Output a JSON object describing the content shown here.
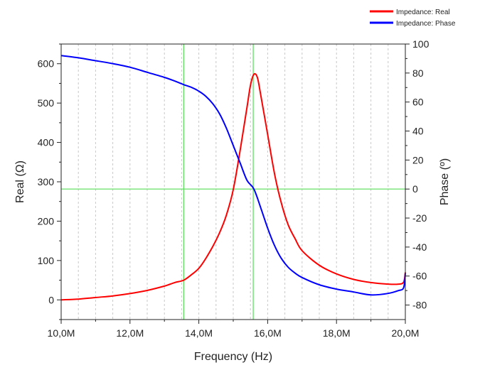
{
  "chart_data": {
    "type": "line",
    "xlabel": "Frequency (Hz)",
    "ylabel_left": "Real (Ω)",
    "ylabel_right": "Phase (º)",
    "xlim": [
      10.0,
      20.0
    ],
    "ylim_left": [
      -50,
      650
    ],
    "ylim_right": [
      -90,
      100
    ],
    "x_ticks": [
      10,
      12,
      14,
      16,
      18,
      20
    ],
    "x_tick_labels": [
      "10,0M",
      "12,0M",
      "14,0M",
      "16,0M",
      "18,0M",
      "20,0M"
    ],
    "y_left_ticks": [
      0,
      100,
      200,
      300,
      400,
      500,
      600
    ],
    "y_left_tick_labels": [
      "0",
      "100",
      "200",
      "300",
      "400",
      "500",
      "600"
    ],
    "y_right_ticks": [
      -80,
      -60,
      -40,
      -20,
      0,
      20,
      40,
      60,
      80,
      100
    ],
    "y_right_tick_labels": [
      "-80",
      "-60",
      "-40",
      "-20",
      "0",
      "20",
      "40",
      "60",
      "80",
      "100"
    ],
    "grid": true,
    "legend_position": "top-right",
    "markers": {
      "vertical_lines_x": [
        13.56,
        15.58
      ],
      "horizontal_line_phase": 0,
      "color": "#55dd55"
    },
    "series": [
      {
        "name": "Impedance: Real",
        "axis": "left",
        "color": "#ff0000",
        "x": [
          10.0,
          10.5,
          11.0,
          11.5,
          12.0,
          12.5,
          13.0,
          13.3,
          13.56,
          13.8,
          14.0,
          14.2,
          14.4,
          14.6,
          14.8,
          15.0,
          15.2,
          15.4,
          15.5,
          15.6,
          15.7,
          15.8,
          16.0,
          16.2,
          16.4,
          16.6,
          16.8,
          17.0,
          17.5,
          18.0,
          18.5,
          19.0,
          19.5,
          19.8,
          19.95,
          20.0
        ],
        "values": [
          0,
          2,
          6,
          10,
          16,
          24,
          35,
          44,
          50,
          65,
          80,
          105,
          135,
          170,
          215,
          280,
          380,
          490,
          545,
          573,
          565,
          520,
          420,
          320,
          245,
          190,
          155,
          125,
          88,
          66,
          52,
          44,
          40,
          40,
          45,
          70
        ]
      },
      {
        "name": "Impedance: Phase",
        "axis": "right",
        "color": "#0000ff",
        "x": [
          10.0,
          10.5,
          11.0,
          11.5,
          12.0,
          12.5,
          13.0,
          13.3,
          13.56,
          13.8,
          14.0,
          14.2,
          14.4,
          14.6,
          14.8,
          15.0,
          15.2,
          15.4,
          15.6,
          15.8,
          16.0,
          16.2,
          16.4,
          16.6,
          16.8,
          17.0,
          17.5,
          18.0,
          18.5,
          19.0,
          19.5,
          19.8,
          19.95,
          20.0
        ],
        "values": [
          92,
          90.5,
          88.5,
          86.5,
          84,
          80.5,
          77,
          74.5,
          72,
          70,
          67.5,
          64,
          59,
          52,
          42,
          30,
          18,
          6,
          0,
          -13,
          -27,
          -39,
          -48,
          -54,
          -58,
          -61,
          -66,
          -69,
          -71,
          -73,
          -72,
          -70,
          -68,
          -58
        ]
      }
    ]
  }
}
